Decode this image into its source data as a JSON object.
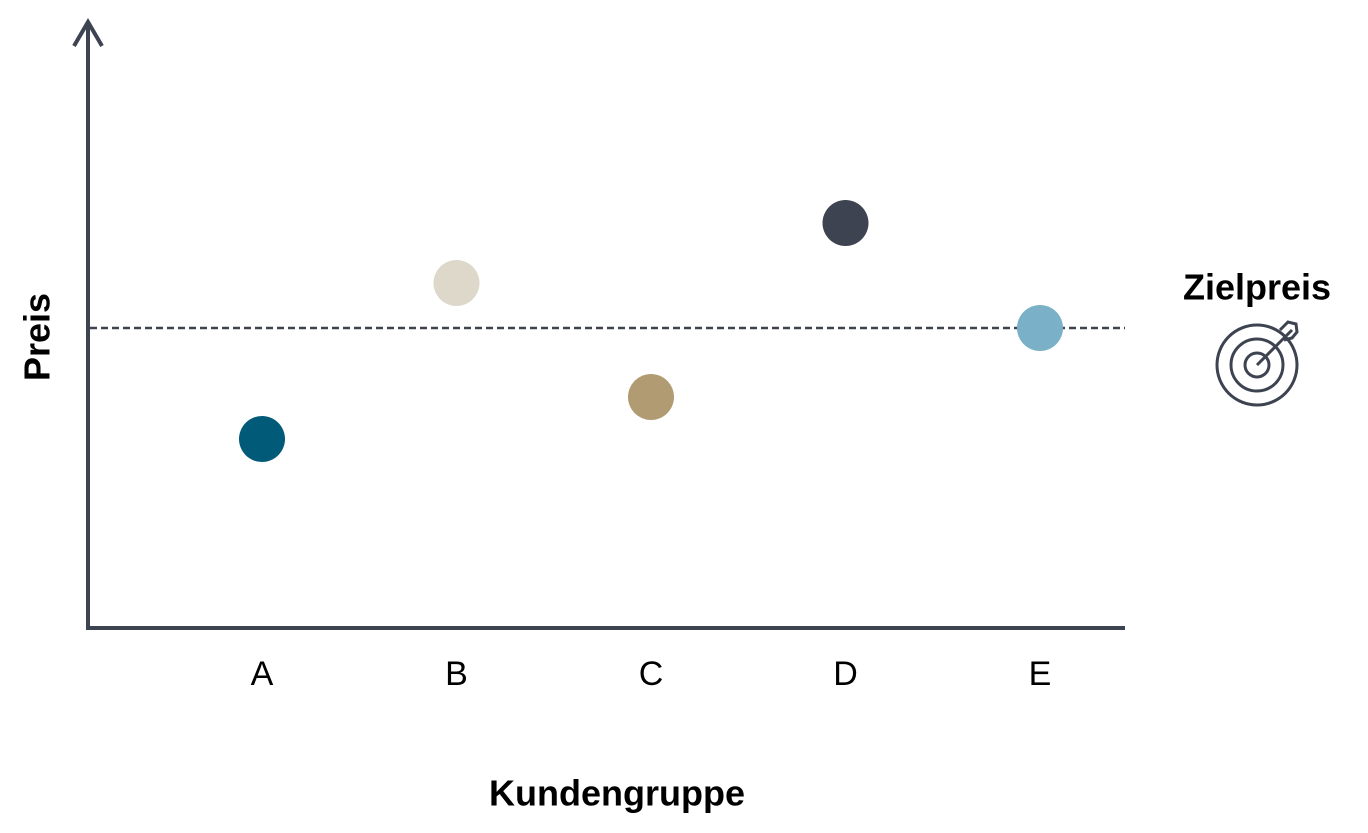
{
  "chart_data": {
    "type": "dot",
    "x_label": "Kundengruppe",
    "y_label": "Preis",
    "categories": [
      "A",
      "B",
      "C",
      "D",
      "E"
    ],
    "values": [
      31.5,
      57.5,
      38.5,
      67.5,
      50
    ],
    "colors": [
      "#005a78",
      "#ddd8ca",
      "#b09b72",
      "#3d4350",
      "#7ab1c8"
    ],
    "ylim": [
      0,
      100
    ],
    "target": {
      "label": "Zielpreis",
      "value": 50
    }
  }
}
